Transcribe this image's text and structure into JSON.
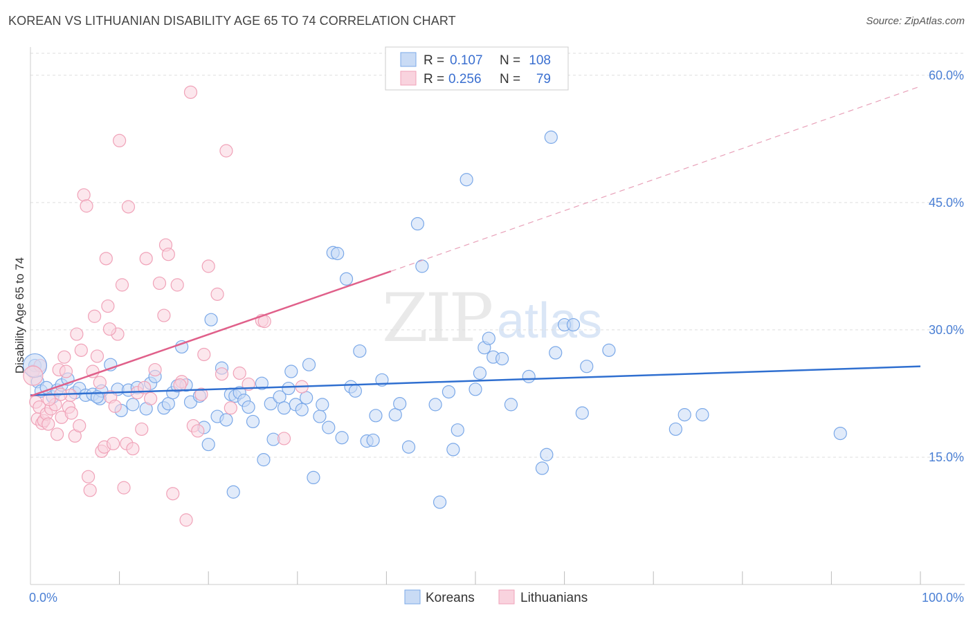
{
  "title": "KOREAN VS LITHUANIAN DISABILITY AGE 65 TO 74 CORRELATION CHART",
  "source": "Source: ZipAtlas.com",
  "watermark": {
    "zip": "ZIP",
    "atlas": "atlas"
  },
  "chart_data": {
    "type": "scatter",
    "xlabel": "",
    "ylabel": "Disability Age 65 to 74",
    "xlim": [
      0,
      100
    ],
    "ylim": [
      0,
      63
    ],
    "x_tick_labels": [
      "0.0%",
      "100.0%"
    ],
    "y_ticks": [
      15,
      30,
      45,
      60
    ],
    "y_tick_labels": [
      "15.0%",
      "30.0%",
      "45.0%",
      "60.0%"
    ],
    "grid": true,
    "legend_position": "top-center",
    "stats": [
      {
        "r_label": "R =",
        "r_value": "0.107",
        "n_label": "N =",
        "n_value": "108"
      },
      {
        "r_label": "R =",
        "r_value": "0.256",
        "n_label": "N =",
        "n_value": "79"
      }
    ],
    "series": [
      {
        "name": "Koreans",
        "color": "#7aa8e8",
        "fill": "#c9dbf5",
        "trend": {
          "x0": 0,
          "y0": 22.3,
          "x1": 100,
          "y1": 25.7,
          "color": "#2f6fd0"
        },
        "points": [
          [
            0.5,
            25.8
          ],
          [
            0.8,
            23.9
          ],
          [
            1.2,
            22.8
          ],
          [
            1.8,
            23.2
          ],
          [
            2.5,
            22.1
          ],
          [
            3,
            22.9
          ],
          [
            3.5,
            23.5
          ],
          [
            4.2,
            24.2
          ],
          [
            5,
            22.6
          ],
          [
            5.5,
            23.1
          ],
          [
            6.2,
            22.3
          ],
          [
            7,
            22.4
          ],
          [
            7.8,
            21.9
          ],
          [
            8,
            22.8
          ],
          [
            9,
            25.9
          ],
          [
            9.8,
            23
          ],
          [
            10.2,
            20.5
          ],
          [
            11,
            22.9
          ],
          [
            11.5,
            21.2
          ],
          [
            12,
            23.2
          ],
          [
            13,
            20.7
          ],
          [
            13.5,
            23.7
          ],
          [
            14,
            24.5
          ],
          [
            15,
            20.8
          ],
          [
            15.5,
            21.3
          ],
          [
            16,
            22.6
          ],
          [
            16.5,
            23.4
          ],
          [
            17,
            28
          ],
          [
            17.5,
            23.5
          ],
          [
            18,
            21.5
          ],
          [
            19,
            22.2
          ],
          [
            19.5,
            18.5
          ],
          [
            20,
            16.5
          ],
          [
            20.3,
            31.2
          ],
          [
            21,
            19.8
          ],
          [
            21.5,
            25.5
          ],
          [
            22,
            19.4
          ],
          [
            22.5,
            22.4
          ],
          [
            23,
            22.2
          ],
          [
            23.5,
            22.6
          ],
          [
            24,
            21.7
          ],
          [
            24.5,
            20.9
          ],
          [
            25,
            19.2
          ],
          [
            26,
            23.7
          ],
          [
            26.2,
            14.7
          ],
          [
            27,
            21.3
          ],
          [
            27.3,
            17.1
          ],
          [
            28,
            22.1
          ],
          [
            28.5,
            20.8
          ],
          [
            29,
            23.1
          ],
          [
            29.3,
            25.1
          ],
          [
            29.8,
            21.2
          ],
          [
            30.5,
            20.6
          ],
          [
            31,
            22
          ],
          [
            31.3,
            25.9
          ],
          [
            31.8,
            12.6
          ],
          [
            32.5,
            19.8
          ],
          [
            32.8,
            21.2
          ],
          [
            33.5,
            18.5
          ],
          [
            34,
            39.1
          ],
          [
            34.5,
            39
          ],
          [
            35,
            17.3
          ],
          [
            35.5,
            36
          ],
          [
            36,
            23.3
          ],
          [
            36.5,
            22.8
          ],
          [
            37,
            27.5
          ],
          [
            37.8,
            16.9
          ],
          [
            38.5,
            17
          ],
          [
            38.8,
            19.9
          ],
          [
            39.5,
            24.1
          ],
          [
            41,
            20
          ],
          [
            41.5,
            21.3
          ],
          [
            42.5,
            16.2
          ],
          [
            43.5,
            42.5
          ],
          [
            44,
            37.5
          ],
          [
            45.5,
            21.2
          ],
          [
            46,
            9.7
          ],
          [
            47,
            22.7
          ],
          [
            47.5,
            15.9
          ],
          [
            48,
            18.2
          ],
          [
            49,
            47.7
          ],
          [
            50,
            23
          ],
          [
            50.5,
            24.9
          ],
          [
            51,
            27.9
          ],
          [
            51.5,
            29
          ],
          [
            52,
            26.8
          ],
          [
            53,
            26.6
          ],
          [
            54,
            21.2
          ],
          [
            56,
            24.5
          ],
          [
            57.5,
            13.7
          ],
          [
            58,
            15.3
          ],
          [
            58.5,
            52.7
          ],
          [
            59,
            27.3
          ],
          [
            60,
            30.6
          ],
          [
            61,
            30.6
          ],
          [
            62,
            20.2
          ],
          [
            62.5,
            25.7
          ],
          [
            65,
            27.6
          ],
          [
            72.5,
            18.3
          ],
          [
            73.5,
            20
          ],
          [
            75.5,
            20
          ],
          [
            91,
            17.8
          ],
          [
            7.5,
            22.1
          ],
          [
            22.8,
            10.9
          ]
        ]
      },
      {
        "name": "Lithuanians",
        "color": "#f0a2b8",
        "fill": "#f9d3de",
        "trend": {
          "x0": 0,
          "y0": 22.2,
          "x1": 40.5,
          "y1": 36.9,
          "color": "#e0608a",
          "dash_x1": 100,
          "dash_y1": 58.7
        },
        "points": [
          [
            0.3,
            25.1
          ],
          [
            0.6,
            21.5
          ],
          [
            0.8,
            19.5
          ],
          [
            1,
            20.9
          ],
          [
            1.3,
            19
          ],
          [
            1.5,
            19.3
          ],
          [
            1.8,
            20.1
          ],
          [
            2,
            18.9
          ],
          [
            2.3,
            20.7
          ],
          [
            2.8,
            21.2
          ],
          [
            3,
            17.7
          ],
          [
            3.2,
            25.3
          ],
          [
            3.5,
            19.7
          ],
          [
            3.8,
            26.8
          ],
          [
            4,
            25.1
          ],
          [
            4.3,
            20.9
          ],
          [
            4.5,
            22.3
          ],
          [
            5,
            17.5
          ],
          [
            5.2,
            29.5
          ],
          [
            5.5,
            18.7
          ],
          [
            5.7,
            27.6
          ],
          [
            6,
            45.9
          ],
          [
            6.3,
            44.6
          ],
          [
            6.5,
            12.7
          ],
          [
            6.7,
            11.1
          ],
          [
            7,
            25.1
          ],
          [
            7.2,
            31.6
          ],
          [
            7.5,
            26.9
          ],
          [
            7.8,
            23.8
          ],
          [
            8,
            15.7
          ],
          [
            8.3,
            16.2
          ],
          [
            8.5,
            38.4
          ],
          [
            8.7,
            32.8
          ],
          [
            9,
            22.1
          ],
          [
            9.3,
            16.6
          ],
          [
            9.5,
            21
          ],
          [
            9.8,
            29.5
          ],
          [
            10,
            52.3
          ],
          [
            10.3,
            35.3
          ],
          [
            10.5,
            11.4
          ],
          [
            10.8,
            16.6
          ],
          [
            11,
            44.5
          ],
          [
            11.5,
            16
          ],
          [
            12,
            22.6
          ],
          [
            12.5,
            18.3
          ],
          [
            13,
            38.4
          ],
          [
            13.5,
            21.9
          ],
          [
            14,
            25.3
          ],
          [
            14.5,
            35.5
          ],
          [
            15,
            31.7
          ],
          [
            15.2,
            40
          ],
          [
            15.5,
            38.9
          ],
          [
            16,
            10.7
          ],
          [
            16.5,
            35.3
          ],
          [
            17,
            23.9
          ],
          [
            17.5,
            7.6
          ],
          [
            18,
            58
          ],
          [
            18.3,
            18.7
          ],
          [
            18.8,
            18.1
          ],
          [
            19.5,
            27.1
          ],
          [
            20,
            37.5
          ],
          [
            21,
            34.2
          ],
          [
            21.5,
            24.8
          ],
          [
            22,
            51.1
          ],
          [
            22.5,
            20.8
          ],
          [
            23.5,
            24.9
          ],
          [
            24.5,
            23.6
          ],
          [
            26,
            31.1
          ],
          [
            26.3,
            31
          ],
          [
            28.5,
            17.2
          ],
          [
            30.5,
            23.3
          ],
          [
            1.1,
            25.8
          ],
          [
            2.1,
            21.8
          ],
          [
            3.4,
            22.4
          ],
          [
            4.6,
            20.2
          ],
          [
            8.9,
            30.1
          ],
          [
            12.8,
            23.2
          ],
          [
            16.8,
            23.5
          ],
          [
            19.2,
            22.4
          ]
        ]
      }
    ]
  }
}
